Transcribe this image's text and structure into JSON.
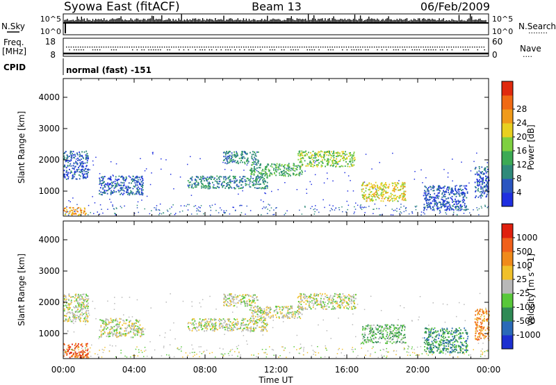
{
  "header": {
    "title_left": "Syowa East (fitACF)",
    "title_center": "Beam 13",
    "title_right": "06/Feb/2009"
  },
  "panels": {
    "nsky": {
      "left_label": "N.Sky",
      "right_label": "N.Search",
      "right_marker": "........",
      "ticks_left": [
        "10^5",
        "10^0"
      ],
      "ticks_right": [
        "10^5",
        "10^0"
      ]
    },
    "freq": {
      "left_label_1": "Freq.",
      "left_label_2": "[MHz]",
      "right_label": "Nave",
      "right_marker": "....",
      "ticks_left": [
        "18",
        "8"
      ],
      "ticks_right": [
        "60",
        "0"
      ]
    },
    "cpid": {
      "label": "CPID",
      "value": "normal (fast) -151"
    }
  },
  "chart_data": [
    {
      "type": "heatmap",
      "name": "power",
      "ylabel": "Slant Range [km]",
      "ylim": [
        200,
        4600
      ],
      "yticks": [
        "1000",
        "2000",
        "3000",
        "4000"
      ],
      "xlim": [
        "00:00",
        "24:00"
      ],
      "colorbar": {
        "label": "Power [dB]",
        "ticks": [
          "4",
          "8",
          "12",
          "16",
          "20",
          "24",
          "28"
        ],
        "colors": [
          "#1f2fe0",
          "#2a55c0",
          "#2f8a7a",
          "#3caa55",
          "#7ed040",
          "#e8d020",
          "#f09a1a",
          "#f06a14",
          "#e02a0e"
        ]
      },
      "regions": [
        {
          "t0": 0.0,
          "t1": 1.3,
          "r0": 250,
          "r1": 500,
          "level": 6
        },
        {
          "t0": 0.0,
          "t1": 1.4,
          "r0": 1400,
          "r1": 2300,
          "level": 1
        },
        {
          "t0": 2.0,
          "t1": 4.5,
          "r0": 900,
          "r1": 1500,
          "level": 1
        },
        {
          "t0": 7.0,
          "t1": 11.5,
          "r0": 1100,
          "r1": 1500,
          "level": 2
        },
        {
          "t0": 9.0,
          "t1": 11.0,
          "r0": 1900,
          "r1": 2300,
          "level": 2
        },
        {
          "t0": 10.5,
          "t1": 13.5,
          "r0": 1500,
          "r1": 1900,
          "level": 3
        },
        {
          "t0": 13.2,
          "t1": 16.5,
          "r0": 1800,
          "r1": 2300,
          "level": 4
        },
        {
          "t0": 16.8,
          "t1": 19.3,
          "r0": 700,
          "r1": 1300,
          "level": 5
        },
        {
          "t0": 20.3,
          "t1": 22.8,
          "r0": 400,
          "r1": 1200,
          "level": 1
        },
        {
          "t0": 23.2,
          "t1": 24.0,
          "r0": 800,
          "r1": 1800,
          "level": 1
        }
      ]
    },
    {
      "type": "heatmap",
      "name": "velocity",
      "xlabel": "Time UT",
      "ylabel": "Slant Range [km]",
      "ylim": [
        200,
        4600
      ],
      "yticks": [
        "1000",
        "2000",
        "3000",
        "4000"
      ],
      "xlim": [
        "00:00",
        "24:00"
      ],
      "xticks": [
        "00:00",
        "04:00",
        "08:00",
        "12:00",
        "16:00",
        "20:00",
        "00:00"
      ],
      "colorbar": {
        "label": "Velocity [m s^-1]",
        "ticks": [
          "1000",
          "500",
          "100",
          "25",
          "-25",
          "-100",
          "-500",
          "-1000"
        ],
        "colors": [
          "#1c2fd0",
          "#2a6ab8",
          "#2f8a55",
          "#58c83a",
          "#b8b8b8",
          "#f0c02a",
          "#f08a1a",
          "#f0601a",
          "#e0200e"
        ]
      },
      "regions": [
        {
          "t0": 0.0,
          "t1": 1.4,
          "r0": 250,
          "r1": 700,
          "level": 7
        },
        {
          "t0": 0.0,
          "t1": 1.4,
          "r0": 1400,
          "r1": 2300,
          "level": 4
        },
        {
          "t0": 2.0,
          "t1": 4.5,
          "r0": 900,
          "r1": 1500,
          "level": 4
        },
        {
          "t0": 7.0,
          "t1": 11.5,
          "r0": 1100,
          "r1": 1500,
          "level": 4
        },
        {
          "t0": 9.0,
          "t1": 11.0,
          "r0": 1900,
          "r1": 2300,
          "level": 4
        },
        {
          "t0": 10.5,
          "t1": 13.5,
          "r0": 1500,
          "r1": 1900,
          "level": 4
        },
        {
          "t0": 13.2,
          "t1": 16.5,
          "r0": 1800,
          "r1": 2300,
          "level": 4
        },
        {
          "t0": 16.8,
          "t1": 19.3,
          "r0": 700,
          "r1": 1300,
          "level": 3
        },
        {
          "t0": 20.3,
          "t1": 22.8,
          "r0": 400,
          "r1": 1200,
          "level": 2
        },
        {
          "t0": 23.2,
          "t1": 24.0,
          "r0": 800,
          "r1": 1800,
          "level": 6
        }
      ]
    }
  ]
}
